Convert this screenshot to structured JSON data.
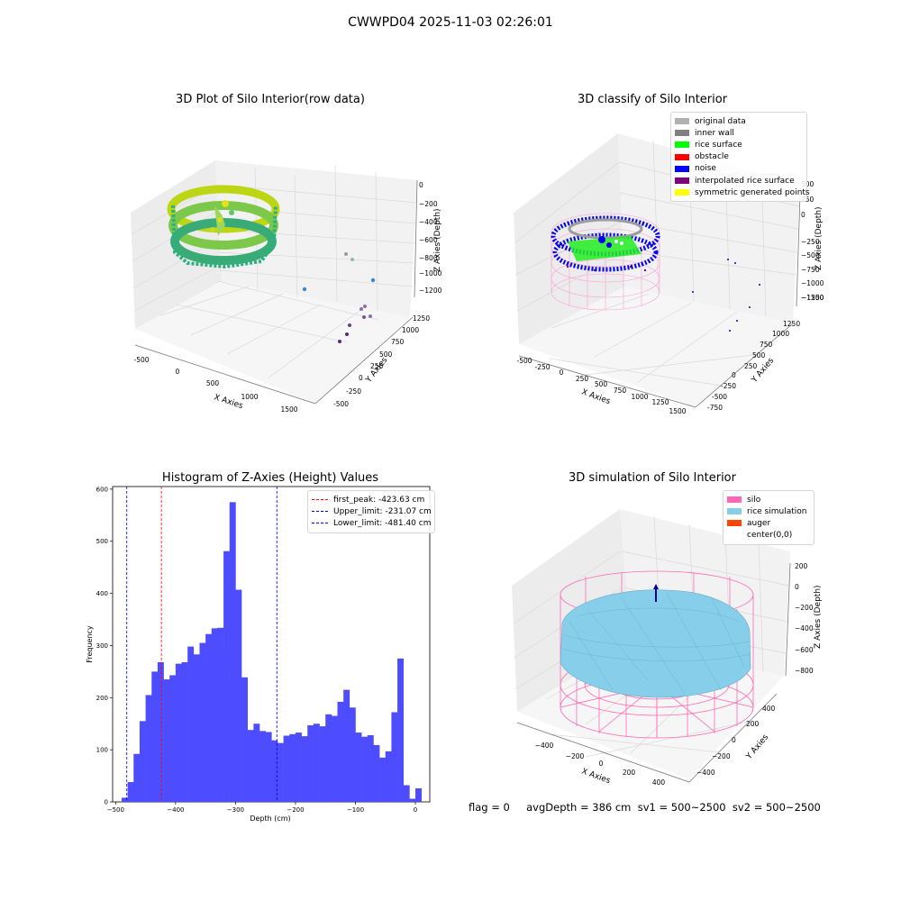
{
  "figure_title": "CWWPD04 2025-11-03 02:26:01",
  "status_line": "flag = 0     avgDepth = 386 cm  sv1 = 500~2500  sv2 = 500~2500",
  "colors": {
    "histogram_bars": "#4d4dff",
    "first_peak_line": "#ff0000",
    "limit_lines": "#0000ff",
    "silo_wireframe": "#ff69b4",
    "rice_simulation": "#87ceeb",
    "auger": "#ff4500"
  },
  "chart_data": [
    {
      "type": "scatter",
      "subtype": "3d",
      "title": "3D Plot of Silo Interior(row data)",
      "xlabel": "X Axies",
      "ylabel": "Y Axies",
      "zlabel": "Z Axies (Depth)",
      "x_ticks": [
        "-500",
        "0",
        "500",
        "1000",
        "1500"
      ],
      "y_ticks": [
        "-500",
        "-250",
        "0",
        "250",
        "500",
        "750",
        "1000",
        "1250"
      ],
      "z_ticks": [
        "0",
        "−200",
        "−400",
        "−600",
        "−800",
        "−1000",
        "−1200"
      ],
      "colormap": "viridis",
      "description_points": "ring of points around silo wall plus scattered outliers"
    },
    {
      "type": "scatter",
      "subtype": "3d",
      "title": "3D classify of Silo Interior",
      "xlabel": "X Axies",
      "ylabel": "Y Axies",
      "zlabel": "Z Axies (Depth)",
      "x_ticks": [
        "-500",
        "-250",
        "0",
        "250",
        "500",
        "750",
        "1000",
        "1250",
        "1500"
      ],
      "y_ticks": [
        "-750",
        "-500",
        "-250",
        "0",
        "250",
        "500",
        "750",
        "1000",
        "1250"
      ],
      "z_ticks": [
        "500",
        "250",
        "0",
        "−250",
        "−500",
        "−750",
        "−1000",
        "−1250",
        "−1500"
      ],
      "legend": [
        {
          "label": "original data",
          "color": "#b0b0b0"
        },
        {
          "label": "inner wall",
          "color": "#808080"
        },
        {
          "label": "rice surface",
          "color": "#00ff00"
        },
        {
          "label": "obstacle",
          "color": "#ff0000"
        },
        {
          "label": "noise",
          "color": "#0000ff"
        },
        {
          "label": "interpolated rice surface",
          "color": "#800080"
        },
        {
          "label": "symmetric generated points",
          "color": "#ffff00"
        }
      ]
    },
    {
      "type": "bar",
      "subtype": "histogram",
      "title": "Histogram of Z-Axies (Height) Values",
      "xlabel": "Depth (cm)",
      "ylabel": "Frequency",
      "xlim": [
        -505,
        24
      ],
      "ylim": [
        0,
        605
      ],
      "x_ticks": [
        -500,
        -400,
        -300,
        -200,
        -100,
        0
      ],
      "y_ticks": [
        0,
        100,
        200,
        300,
        400,
        500,
        600
      ],
      "bin_width": 10,
      "bin_starts": [
        -490,
        -480,
        -470,
        -460,
        -450,
        -440,
        -430,
        -420,
        -410,
        -400,
        -390,
        -380,
        -370,
        -360,
        -350,
        -340,
        -330,
        -320,
        -310,
        -300,
        -290,
        -280,
        -270,
        -260,
        -250,
        -240,
        -230,
        -220,
        -210,
        -200,
        -190,
        -180,
        -170,
        -160,
        -150,
        -140,
        -130,
        -120,
        -110,
        -100,
        -90,
        -80,
        -70,
        -60,
        -50,
        -40,
        -30,
        -20,
        -10,
        0
      ],
      "counts": [
        8,
        38,
        92,
        155,
        205,
        250,
        268,
        235,
        243,
        265,
        268,
        298,
        283,
        305,
        322,
        333,
        334,
        481,
        575,
        407,
        239,
        138,
        150,
        136,
        134,
        118,
        113,
        127,
        130,
        133,
        126,
        147,
        150,
        145,
        168,
        165,
        192,
        215,
        181,
        133,
        125,
        128,
        109,
        85,
        97,
        172,
        275,
        32,
        6,
        26
      ],
      "legend": [
        {
          "label": "first_peak: -423.63 cm",
          "value": -423.63,
          "color": "#ff0000"
        },
        {
          "label": "Upper_limit: -231.07 cm",
          "value": -231.07,
          "color": "#0000ff"
        },
        {
          "label": "Lower_limit: -481.40 cm",
          "value": -481.4,
          "color": "#0000ff"
        }
      ]
    },
    {
      "type": "area",
      "subtype": "3d-surface",
      "title": "3D simulation of Silo Interior",
      "xlabel": "X Axies",
      "ylabel": "Y Axies",
      "zlabel": "Z Axies (Depth)",
      "x_ticks": [
        "−400",
        "−200",
        "0",
        "200",
        "400"
      ],
      "y_ticks": [
        "−400",
        "−200",
        "0",
        "200",
        "400"
      ],
      "z_ticks": [
        "200",
        "0",
        "−200",
        "−400",
        "−600",
        "−800"
      ],
      "legend": [
        {
          "label": "silo",
          "color": "#ff69b4"
        },
        {
          "label": "rice simulation",
          "color": "#87ceeb"
        },
        {
          "label": "auger",
          "color": "#ff4500"
        },
        {
          "label": "center(0,0)",
          "color": ""
        }
      ]
    }
  ]
}
